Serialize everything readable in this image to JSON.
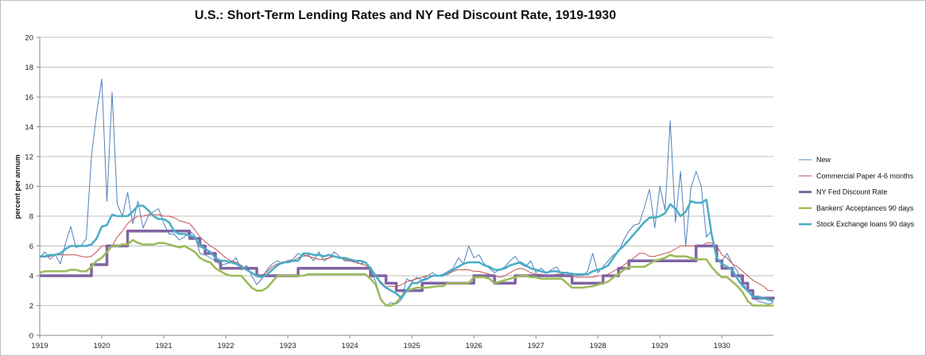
{
  "chart_data": {
    "type": "line",
    "title": "U.S.: Short-Term Lending Rates and NY Fed Discount Rate, 1919-1930",
    "xlabel": "",
    "ylabel": "percent per annum",
    "xlim": [
      1919,
      1930.83
    ],
    "ylim": [
      0,
      20
    ],
    "yticks": [
      "0",
      "2",
      "4",
      "6",
      "8",
      "10",
      "12",
      "14",
      "16",
      "18",
      "20"
    ],
    "xticks": [
      "1919",
      "1920",
      "1921",
      "1922",
      "1923",
      "1924",
      "1925",
      "1926",
      "1927",
      "1928",
      "1929",
      "1930"
    ],
    "grid": "horizontal",
    "legend_position": "right",
    "x_start": 1919,
    "x_step_months": 1,
    "series": [
      {
        "name": "New",
        "color": "#4f81bd",
        "width": 1,
        "values": [
          5.2,
          5.6,
          5.1,
          5.4,
          4.8,
          6.2,
          7.3,
          5.9,
          6,
          6.5,
          12,
          14.9,
          17.2,
          9,
          16.3,
          8.8,
          8,
          9.6,
          7.5,
          9,
          7.2,
          8,
          8.3,
          8.5,
          7.5,
          6.8,
          6.8,
          6.4,
          6.6,
          7,
          6.7,
          5.5,
          5.4,
          5.2,
          5,
          4.7,
          4.8,
          4.9,
          5.2,
          4.4,
          4.7,
          4,
          3.4,
          3.8,
          4.4,
          4.8,
          5,
          4.8,
          5,
          5.1,
          5.5,
          5.3,
          5.4,
          5,
          5.6,
          5,
          5.2,
          5.6,
          5.3,
          5,
          5,
          5,
          4.8,
          4.9,
          4.4,
          3.6,
          2.5,
          2,
          2.2,
          2.1,
          2.4,
          3.8,
          3.6,
          3.9,
          3.7,
          4,
          4.2,
          4,
          4.1,
          4.3,
          4.5,
          5.2,
          4.8,
          6,
          5.2,
          5.4,
          4.8,
          4.5,
          4.2,
          4.4,
          4.6,
          5,
          5.3,
          4.8,
          4.6,
          5,
          4.2,
          4.5,
          4.2,
          4.4,
          4.6,
          4.1,
          4,
          4.2,
          4,
          4,
          4.3,
          5.5,
          4.2,
          4.6,
          5,
          5.4,
          5.6,
          6.4,
          7,
          7.4,
          7.5,
          8.6,
          9.8,
          7.2,
          10,
          8.4,
          14.4,
          7.6,
          11,
          6,
          9.9,
          11,
          10,
          6.6,
          7,
          5,
          5,
          5.5,
          4.8,
          4.3,
          3.5,
          3,
          2.5,
          2.3,
          2.2,
          2.1,
          2.2
        ]
      },
      {
        "name": "Commercial Paper 4-6 months",
        "color": "#c0504d",
        "width": 1,
        "values": [
          5.25,
          5.25,
          5.3,
          5.4,
          5.4,
          5.4,
          5.4,
          5.4,
          5.3,
          5.25,
          5.3,
          5.6,
          6,
          6,
          6,
          6.6,
          7,
          7.5,
          7.8,
          8,
          8,
          8.1,
          8.1,
          8.1,
          8,
          8,
          7.9,
          7.7,
          7.6,
          7.5,
          7.1,
          6.6,
          6.3,
          6,
          5.8,
          5.5,
          5.2,
          5,
          4.9,
          4.7,
          4.4,
          4.2,
          4,
          4,
          4.3,
          4.6,
          4.8,
          4.9,
          5,
          5,
          5.2,
          5.4,
          5.3,
          5.2,
          5.1,
          5.1,
          5.2,
          5.3,
          5.2,
          5.1,
          5,
          4.9,
          4.8,
          4.7,
          4.4,
          4,
          3.6,
          3.25,
          3.3,
          3.25,
          3.4,
          3.6,
          3.7,
          3.8,
          3.9,
          4,
          4,
          4,
          4,
          4.1,
          4.3,
          4.4,
          4.4,
          4.4,
          4.3,
          4.3,
          4.2,
          4.1,
          4,
          3.9,
          4,
          4.2,
          4.4,
          4.5,
          4.4,
          4.2,
          4.1,
          4.1,
          4,
          4,
          4.1,
          4.1,
          4.2,
          4,
          3.9,
          3.9,
          3.9,
          3.9,
          4,
          4,
          4.1,
          4.3,
          4.5,
          4.7,
          5,
          5.2,
          5.5,
          5.5,
          5.3,
          5.3,
          5.4,
          5.5,
          5.6,
          5.8,
          6,
          6,
          6,
          6,
          6,
          6.2,
          6.2,
          6,
          5.4,
          5.2,
          4.8,
          4.6,
          4.3,
          4,
          3.7,
          3.5,
          3.3,
          3,
          3
        ]
      },
      {
        "name": "NY Fed Discount Rate",
        "color": "#8064a2",
        "width": 3.5,
        "step": true,
        "values": [
          4,
          4,
          4,
          4,
          4,
          4,
          4,
          4,
          4,
          4,
          4.75,
          4.75,
          4.75,
          6,
          6,
          6,
          6,
          7,
          7,
          7,
          7,
          7,
          7,
          7,
          7,
          7,
          7,
          7,
          7,
          6.5,
          6.5,
          6,
          5.5,
          5.5,
          5,
          4.5,
          4.5,
          4.5,
          4.5,
          4.5,
          4.5,
          4.5,
          4,
          4,
          4,
          4,
          4,
          4,
          4,
          4,
          4.5,
          4.5,
          4.5,
          4.5,
          4.5,
          4.5,
          4.5,
          4.5,
          4.5,
          4.5,
          4.5,
          4.5,
          4.5,
          4.5,
          4,
          4,
          4,
          3.5,
          3.5,
          3,
          3,
          3,
          3,
          3,
          3.5,
          3.5,
          3.5,
          3.5,
          3.5,
          3.5,
          3.5,
          3.5,
          3.5,
          3.5,
          4,
          4,
          4,
          4,
          3.5,
          3.5,
          3.5,
          3.5,
          4,
          4,
          4,
          4,
          4,
          4,
          4,
          4,
          4,
          4,
          4,
          3.5,
          3.5,
          3.5,
          3.5,
          3.5,
          3.5,
          4,
          4,
          4,
          4.5,
          4.5,
          5,
          5,
          5,
          5,
          5,
          5,
          5,
          5,
          5,
          5,
          5,
          5,
          5,
          6,
          6,
          6,
          6,
          5,
          4.5,
          4.5,
          4,
          4,
          3.5,
          3,
          2.5,
          2.5,
          2.5,
          2.5,
          2.5
        ]
      },
      {
        "name": "Bankers' Acceptances 90 days",
        "color": "#9bbb59",
        "width": 2.5,
        "values": [
          4.2,
          4.3,
          4.3,
          4.3,
          4.3,
          4.3,
          4.4,
          4.4,
          4.3,
          4.3,
          4.6,
          5,
          5.2,
          5.6,
          6,
          6,
          6.1,
          6.1,
          6.4,
          6.2,
          6.1,
          6.1,
          6.1,
          6.2,
          6.2,
          6.1,
          6,
          5.9,
          6,
          5.8,
          5.6,
          5.2,
          5,
          4.9,
          4.5,
          4.3,
          4.1,
          4,
          4,
          4,
          3.6,
          3.2,
          3,
          3,
          3.2,
          3.6,
          4,
          4,
          4,
          4,
          4,
          4,
          4.1,
          4.1,
          4.1,
          4.1,
          4.1,
          4.1,
          4.1,
          4.1,
          4.1,
          4.1,
          4.1,
          4.1,
          3.8,
          3.4,
          2.4,
          2,
          2,
          2.2,
          2.6,
          3,
          3.1,
          3.2,
          3.2,
          3.2,
          3.25,
          3.3,
          3.3,
          3.5,
          3.5,
          3.5,
          3.5,
          3.5,
          3.9,
          3.9,
          3.9,
          3.8,
          3.5,
          3.6,
          3.7,
          3.8,
          3.9,
          4,
          4,
          3.9,
          3.9,
          3.8,
          3.8,
          3.8,
          3.8,
          3.8,
          3.5,
          3.2,
          3.2,
          3.2,
          3.25,
          3.3,
          3.4,
          3.5,
          3.6,
          3.9,
          4.1,
          4.4,
          4.6,
          4.6,
          4.6,
          4.6,
          4.8,
          5,
          5.1,
          5.2,
          5.4,
          5.3,
          5.3,
          5.3,
          5.2,
          5.1,
          5.1,
          5.1,
          4.6,
          4.2,
          3.9,
          3.9,
          3.6,
          3.3,
          2.9,
          2.3,
          2,
          2,
          2,
          2,
          2
        ]
      },
      {
        "name": "Stock Exchange loans 90 days",
        "color": "#4bacc6",
        "width": 2.5,
        "values": [
          5.3,
          5.3,
          5.4,
          5.4,
          5.5,
          5.8,
          6,
          6,
          6,
          6,
          6.1,
          6.5,
          7.3,
          7.4,
          8.1,
          8,
          8,
          8,
          8.3,
          8.7,
          8.7,
          8.4,
          8,
          7.8,
          7.8,
          7.6,
          7,
          6.8,
          6.8,
          6.7,
          6.6,
          6,
          5.8,
          5.6,
          5.2,
          5,
          5,
          4.9,
          4.8,
          4.6,
          4.4,
          4.2,
          4,
          3.9,
          4.1,
          4.4,
          4.7,
          4.9,
          4.9,
          5,
          5,
          5.5,
          5.5,
          5.4,
          5.4,
          5.3,
          5.4,
          5.3,
          5.2,
          5.2,
          5.1,
          5,
          5,
          4.9,
          4.5,
          4,
          3.5,
          3.2,
          3,
          2.8,
          2.5,
          3,
          3.5,
          3.5,
          3.7,
          3.8,
          4,
          4,
          4,
          4.2,
          4.4,
          4.6,
          4.8,
          4.9,
          4.9,
          4.9,
          4.7,
          4.6,
          4.4,
          4.4,
          4.5,
          4.7,
          4.8,
          4.9,
          4.7,
          4.5,
          4.4,
          4.3,
          4.2,
          4.3,
          4.3,
          4.2,
          4.2,
          4.1,
          4.1,
          4.1,
          4.1,
          4.3,
          4.4,
          4.5,
          4.7,
          5.2,
          5.7,
          6,
          6.4,
          6.8,
          7.2,
          7.6,
          7.9,
          7.9,
          8,
          8.2,
          8.8,
          8.5,
          8,
          8.3,
          9,
          8.9,
          8.9,
          9.1,
          6.8,
          5.2,
          4.8,
          4.6,
          4.4,
          3.8,
          3.3,
          3,
          2.6,
          2.6,
          2.5,
          2.4,
          2.3
        ]
      }
    ]
  }
}
